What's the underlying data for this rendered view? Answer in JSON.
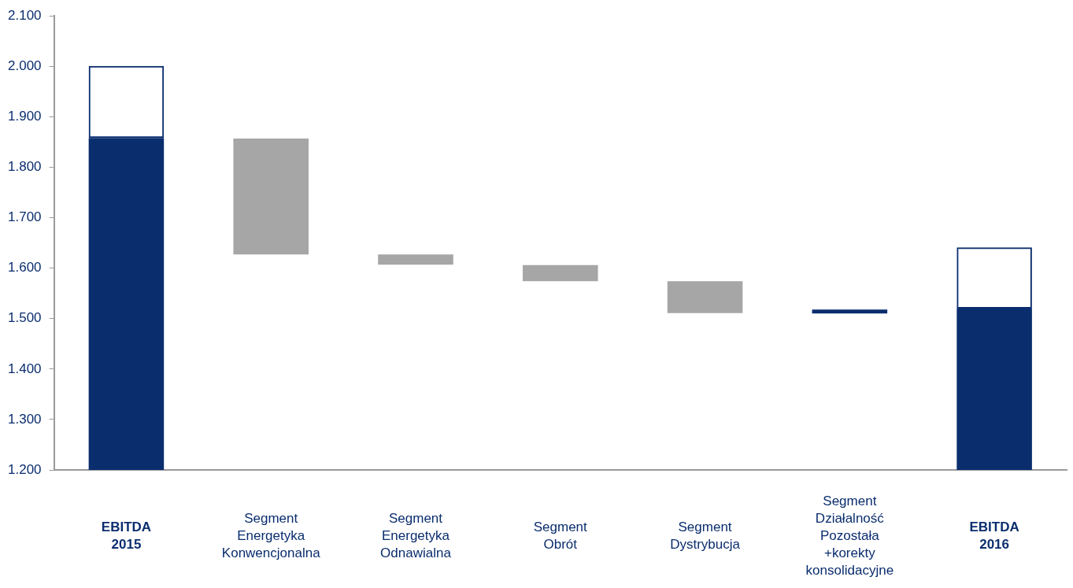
{
  "chart_data": {
    "type": "bar",
    "categories": [
      "EBITDA 2015",
      "Segment Energetyka Konwencjonalna",
      "Segment Energetyka Odnawialna",
      "Segment Obrót",
      "Segment Dystrybucja",
      "Segment Działalność Pozostała +korekty konsolidacyjne",
      "EBITDA 2016"
    ],
    "series": [
      {
        "color": "#0a2d6e",
        "values": [
          1858,
          null,
          null,
          null,
          null,
          8,
          1520
        ],
        "base": [
          null,
          null,
          null,
          null,
          null,
          1510,
          null
        ]
      },
      {
        "color": "#0a2d6e",
        "values": [
          143,
          null,
          null,
          null,
          null,
          null,
          121
        ],
        "base": [
          1858,
          null,
          null,
          null,
          null,
          null,
          1520
        ]
      },
      {
        "color": "#a6a6a6",
        "values": [
          null,
          -230,
          -20,
          -32,
          -63,
          null,
          null
        ],
        "base": [
          null,
          1857,
          1627,
          1606,
          1574,
          null,
          null
        ]
      }
    ],
    "ylim": [
      1200,
      2100
    ],
    "yticks": [
      {
        "value": 1200,
        "label": "1.200"
      },
      {
        "value": 1300,
        "label": "1.300"
      },
      {
        "value": 1400,
        "label": "1.400"
      },
      {
        "value": 1500,
        "label": "1.500"
      },
      {
        "value": 1600,
        "label": "1.600"
      },
      {
        "value": 1700,
        "label": "1.700"
      },
      {
        "value": 1800,
        "label": "1.800"
      },
      {
        "value": 1900,
        "label": "1.900"
      },
      {
        "value": 2000,
        "label": "2.000"
      },
      {
        "value": 2100,
        "label": "2.100"
      }
    ],
    "grid": false,
    "legend": false
  }
}
